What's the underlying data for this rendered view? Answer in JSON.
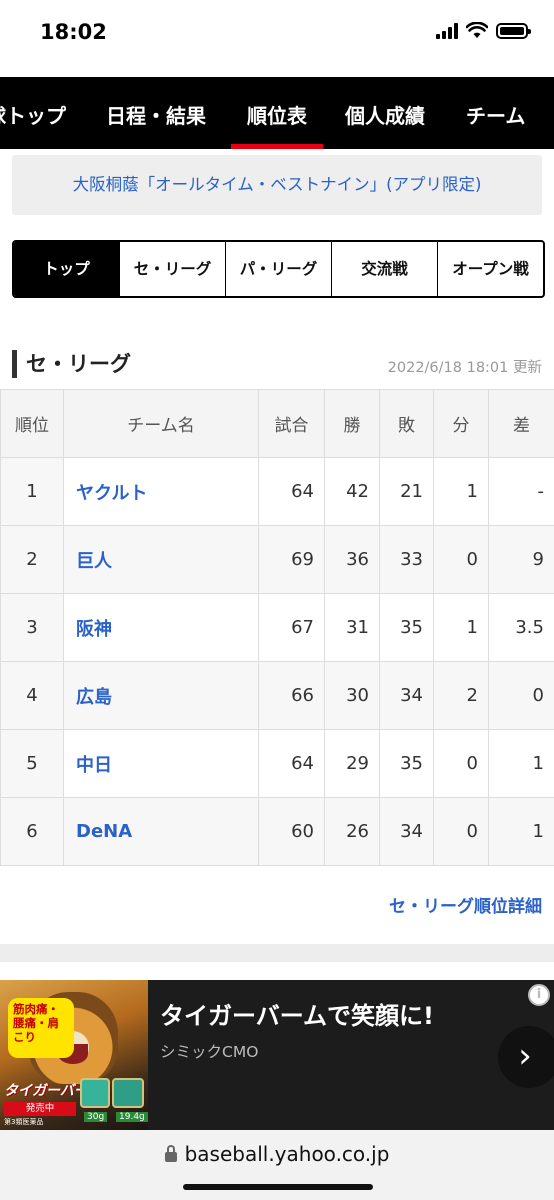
{
  "status_bar": {
    "time": "18:02"
  },
  "nav": {
    "items": [
      {
        "label": "球トップ"
      },
      {
        "label": "日程・結果"
      },
      {
        "label": "順位表"
      },
      {
        "label": "個人成績"
      },
      {
        "label": "チーム"
      }
    ],
    "active": "順位表"
  },
  "banner": {
    "text": "大阪桐蔭「オールタイム・ベストナイン」(アプリ限定)"
  },
  "league_tabs": [
    {
      "label": "トップ",
      "active": true
    },
    {
      "label": "セ・リーグ"
    },
    {
      "label": "パ・リーグ"
    },
    {
      "label": "交流戦"
    },
    {
      "label": "オープン戦"
    }
  ],
  "section": {
    "title": "セ・リーグ",
    "updated": "2022/6/18 18:01 更新"
  },
  "table": {
    "headers": [
      "順位",
      "チーム名",
      "試合",
      "勝",
      "敗",
      "分",
      "差"
    ],
    "rows": [
      {
        "rank": "1",
        "team": "ヤクルト",
        "games": "64",
        "wins": "42",
        "losses": "21",
        "draws": "1",
        "gb": "-"
      },
      {
        "rank": "2",
        "team": "巨人",
        "games": "69",
        "wins": "36",
        "losses": "33",
        "draws": "0",
        "gb": "9"
      },
      {
        "rank": "3",
        "team": "阪神",
        "games": "67",
        "wins": "31",
        "losses": "35",
        "draws": "1",
        "gb": "3.5"
      },
      {
        "rank": "4",
        "team": "広島",
        "games": "66",
        "wins": "30",
        "losses": "34",
        "draws": "2",
        "gb": "0"
      },
      {
        "rank": "5",
        "team": "中日",
        "games": "64",
        "wins": "29",
        "losses": "35",
        "draws": "0",
        "gb": "1"
      },
      {
        "rank": "6",
        "team": "DeNA",
        "games": "60",
        "wins": "26",
        "losses": "34",
        "draws": "0",
        "gb": "1"
      }
    ]
  },
  "detail_link": "セ・リーグ順位詳細",
  "ad": {
    "headline": "タイガーバームで笑顔に!",
    "sponsor": "シミックCMO",
    "bubble_text": "筋肉痛・腰痛・肩こり",
    "logo_text": "タイガーバーム",
    "sale_text": "発売中",
    "category_text": "第3類医薬品",
    "weight1": "30g",
    "weight2": "19.4g",
    "info_icon": "info-icon",
    "next_icon": "chevron-right-icon"
  },
  "url_bar": {
    "url": "baseball.yahoo.co.jp"
  }
}
